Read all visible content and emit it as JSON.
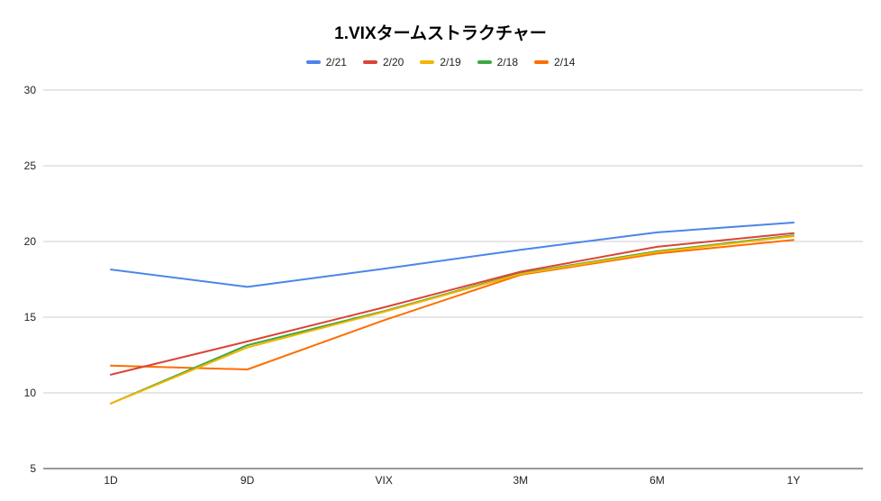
{
  "chart_data": {
    "type": "line",
    "title": "1.VIXタームストラクチャー",
    "xlabel": "",
    "ylabel": "",
    "categories": [
      "1D",
      "9D",
      "VIX",
      "3M",
      "6M",
      "1Y"
    ],
    "ylim": [
      5,
      30
    ],
    "yticks": [
      5,
      10,
      15,
      20,
      25,
      30
    ],
    "grid": true,
    "legend_position": "top",
    "series": [
      {
        "name": "2/21",
        "color": "#4a86e8",
        "values": [
          18.15,
          17.0,
          18.2,
          19.45,
          20.6,
          21.25
        ]
      },
      {
        "name": "2/20",
        "color": "#db4437",
        "values": [
          11.2,
          13.4,
          15.65,
          18.0,
          19.65,
          20.55
        ]
      },
      {
        "name": "2/19",
        "color": "#f4b400",
        "values": [
          9.3,
          13.0,
          15.35,
          17.85,
          19.3,
          20.35
        ]
      },
      {
        "name": "2/18",
        "color": "#3da843",
        "values": [
          9.3,
          13.15,
          15.4,
          17.9,
          19.35,
          20.4
        ]
      },
      {
        "name": "2/14",
        "color": "#ff6d01",
        "values": [
          11.8,
          11.55,
          14.8,
          17.8,
          19.2,
          20.1
        ]
      }
    ]
  }
}
